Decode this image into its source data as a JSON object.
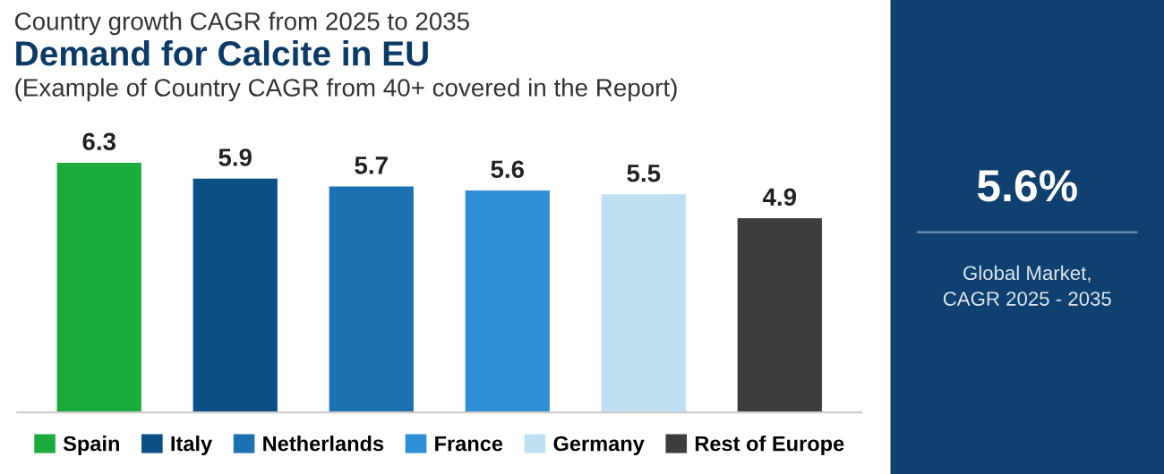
{
  "chart_data": [
    {
      "type": "bar",
      "title": "Demand for Calcite in EU",
      "subtitle": "(Example of Country CAGR from 40+ covered in the Report)",
      "annotations": [
        "Country growth CAGR from 2025 to 2035"
      ],
      "categories": [
        null,
        null,
        null,
        null,
        null,
        null
      ],
      "series": [
        {
          "name": "Spain",
          "color": "#1aab3c",
          "values": [
            6.3,
            null,
            null,
            null,
            null,
            null
          ]
        },
        {
          "name": "Italy",
          "color": "#0b4f86",
          "values": [
            null,
            5.9,
            null,
            null,
            null,
            null
          ]
        },
        {
          "name": "Netherlands",
          "color": "#1c72b0",
          "values": [
            null,
            null,
            5.7,
            null,
            null,
            null
          ]
        },
        {
          "name": "France",
          "color": "#2e8fd6",
          "values": [
            null,
            null,
            null,
            5.6,
            null,
            null
          ]
        },
        {
          "name": "Germany",
          "color": "#bfe0f3",
          "values": [
            null,
            null,
            null,
            null,
            5.5,
            null
          ]
        },
        {
          "name": "Rest of Europe",
          "color": "#3d3d3d",
          "values": [
            null,
            null,
            null,
            null,
            null,
            4.9
          ]
        }
      ],
      "stacked": true,
      "data_labels": true,
      "legend": "bottom"
    },
    {
      "type": "other",
      "title": "5.6%",
      "annotations": [
        "Global Market,\nCAGR 2025 - 2035"
      ]
    }
  ]
}
